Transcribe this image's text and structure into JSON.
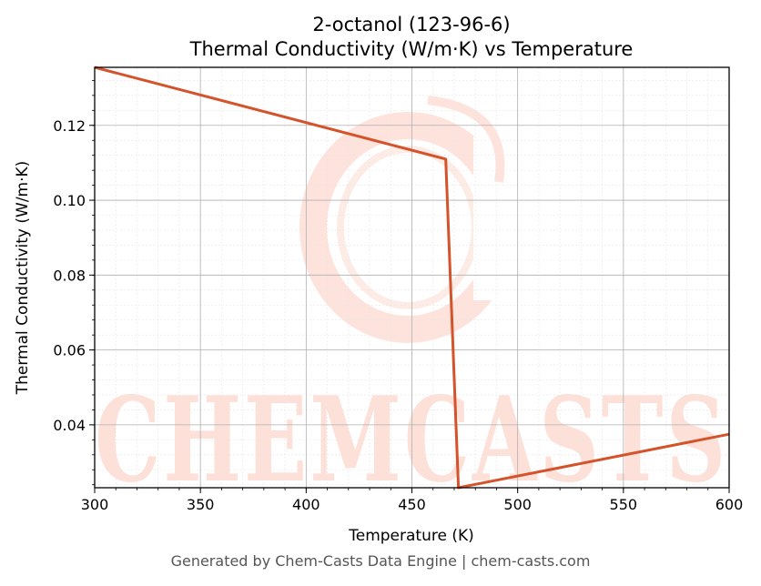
{
  "chart_data": {
    "type": "line",
    "title": "2-octanol (123-96-6)",
    "subtitle": "Thermal Conductivity (W/m·K) vs Temperature",
    "xlabel": "Temperature (K)",
    "ylabel": "Thermal Conductivity (W/m·K)",
    "xlim": [
      300,
      600
    ],
    "ylim": [
      0.0232,
      0.1355
    ],
    "xticks": [
      300,
      350,
      400,
      450,
      500,
      550,
      600
    ],
    "yticks": [
      0.04,
      0.06,
      0.08,
      0.1,
      0.12
    ],
    "grid": true,
    "series": [
      {
        "x": [
          300,
          466,
          472,
          600
        ],
        "y": [
          0.1355,
          0.111,
          0.0232,
          0.0375
        ],
        "color": "#d4532a"
      }
    ],
    "watermark": "CHEMCASTS"
  },
  "footer": "Generated by Chem-Casts Data Engine | chem-casts.com"
}
